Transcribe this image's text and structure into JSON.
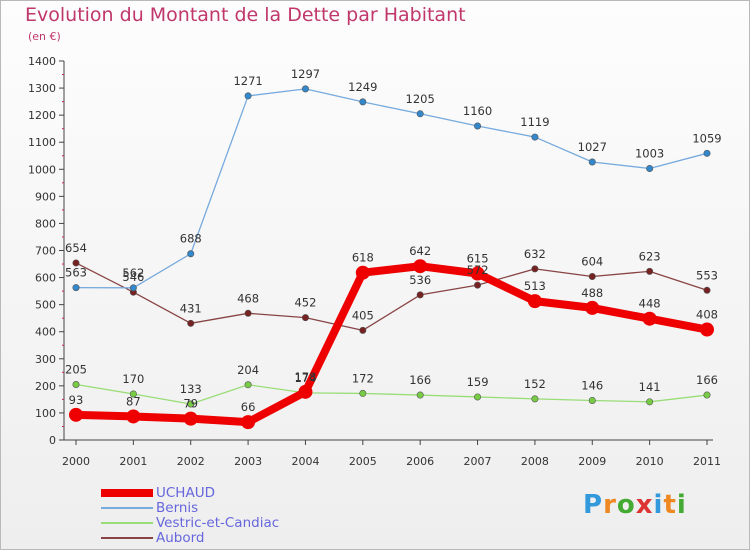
{
  "chart_data": {
    "type": "line",
    "title": "Evolution du Montant de la Dette par Habitant",
    "unit_label": "(en €)",
    "x": [
      "2000",
      "2001",
      "2002",
      "2003",
      "2004",
      "2005",
      "2006",
      "2007",
      "2008",
      "2009",
      "2010",
      "2011"
    ],
    "ylim": [
      0,
      1400
    ],
    "yticks": [
      0,
      100,
      200,
      300,
      400,
      500,
      600,
      700,
      800,
      900,
      1000,
      1100,
      1200,
      1300,
      1400
    ],
    "grid": false,
    "legend_position": "bottom-left",
    "series": [
      {
        "name": "UCHAUD",
        "color": "#ee0000",
        "values": [
          93,
          87,
          79,
          66,
          178,
          618,
          642,
          615,
          513,
          488,
          448,
          408
        ],
        "labels": [
          "93",
          "87",
          "79",
          "66",
          "178",
          "618",
          "642",
          "615",
          "513",
          "488",
          "448",
          "408"
        ]
      },
      {
        "name": "Bernis",
        "color": "#77aadd",
        "marker_color": "#3388cc",
        "values": [
          563,
          562,
          688,
          1271,
          1297,
          1249,
          1205,
          1160,
          1119,
          1027,
          1003,
          1059
        ],
        "labels": [
          "563",
          "562",
          "688",
          "1271",
          "1297",
          "1249",
          "1205",
          "1160",
          "1119",
          "1027",
          "1003",
          "1059"
        ]
      },
      {
        "name": "Vestric-et-Candiac",
        "color": "#99dd77",
        "marker_color": "#77cc44",
        "values": [
          205,
          170,
          133,
          204,
          174,
          172,
          166,
          159,
          152,
          146,
          141,
          166
        ],
        "labels": [
          "205",
          "170",
          "133",
          "204",
          "174",
          "172",
          "166",
          "159",
          "152",
          "146",
          "141",
          "166"
        ]
      },
      {
        "name": "Aubord",
        "color": "#884444",
        "marker_color": "#772222",
        "values": [
          654,
          546,
          431,
          468,
          452,
          405,
          536,
          572,
          632,
          604,
          623,
          553
        ],
        "labels": [
          "654",
          "546",
          "431",
          "468",
          "452",
          "405",
          "536",
          "572",
          "632",
          "604",
          "623",
          "553"
        ]
      }
    ]
  },
  "brand": {
    "letters": [
      "P",
      "r",
      "o",
      "x",
      "i",
      "t",
      "i"
    ],
    "colors": [
      "#3399dd",
      "#ee8822",
      "#44aa33",
      "#dd3333",
      "#3399dd",
      "#ee8822",
      "#44aa33"
    ]
  }
}
